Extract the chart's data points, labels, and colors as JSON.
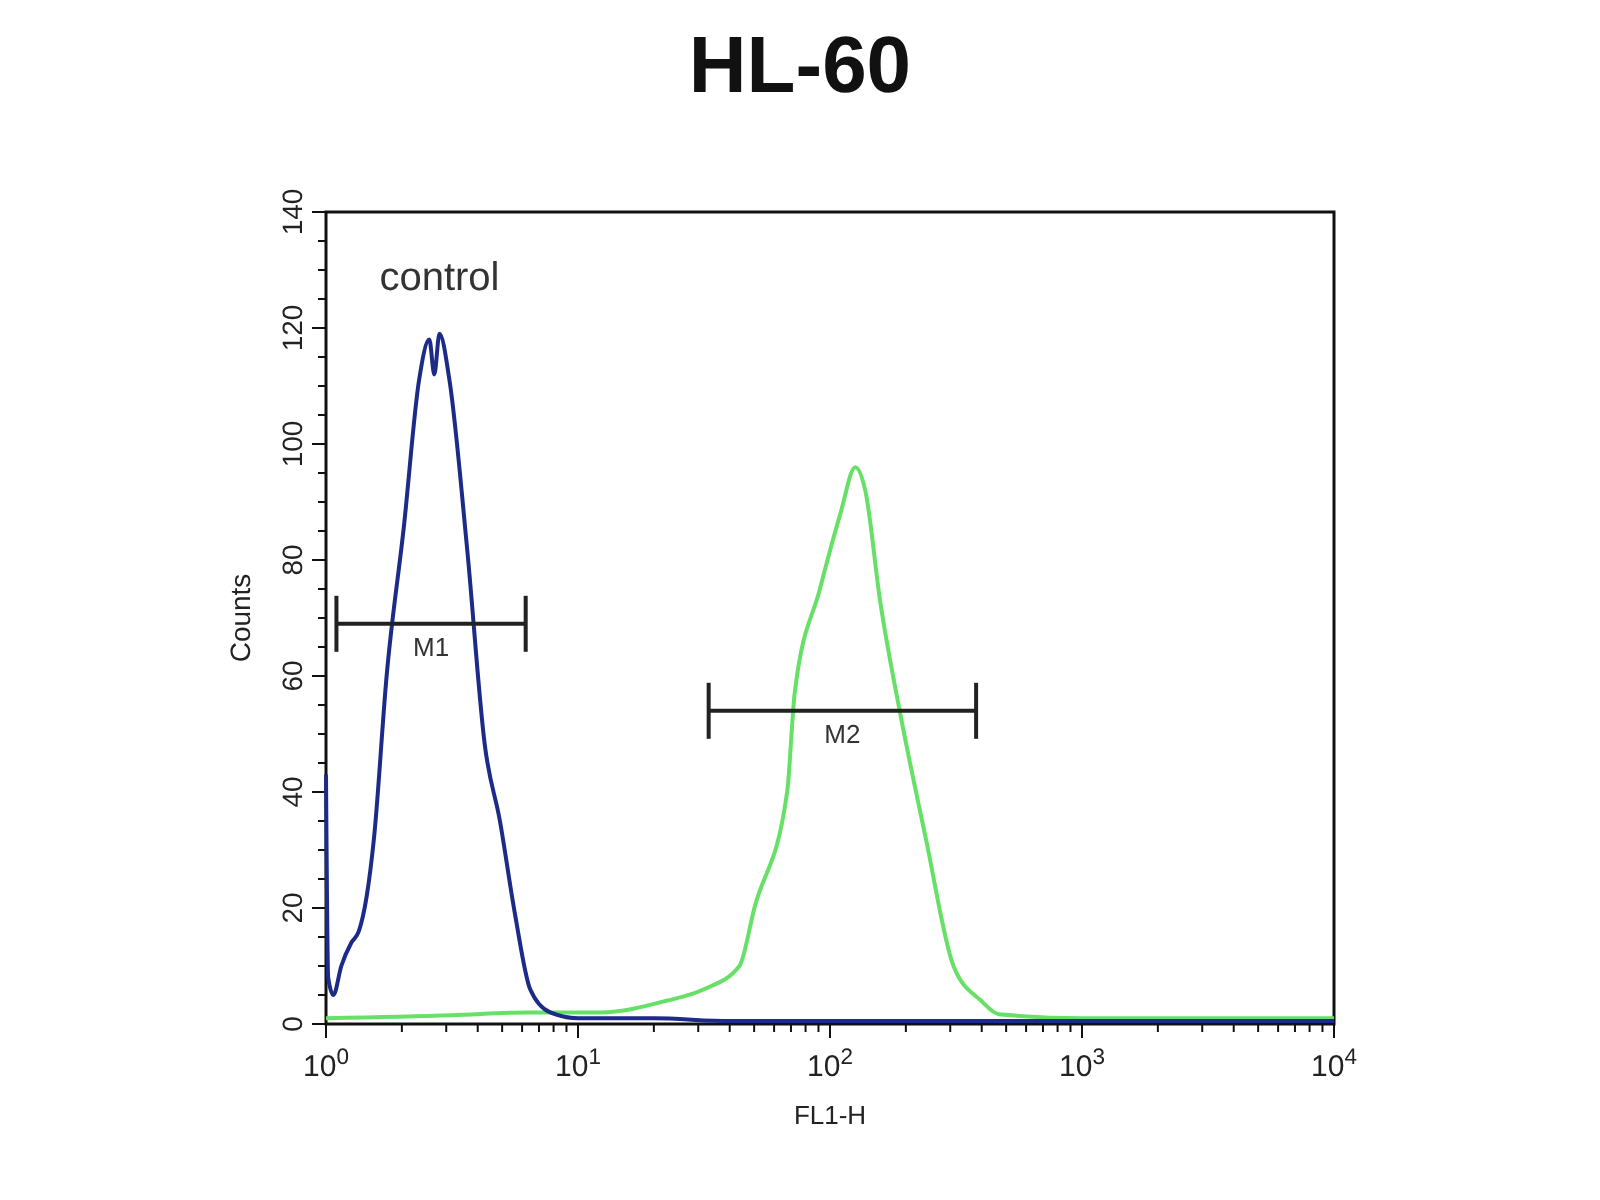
{
  "chart_data": {
    "type": "line",
    "title": "HL-60",
    "xlabel": "FL1-H",
    "ylabel": "Counts",
    "log": "x",
    "xlim": [
      1,
      10000
    ],
    "ylim": [
      0,
      140
    ],
    "xticks": [
      {
        "value": 1,
        "label": "10$^{0}$"
      },
      {
        "value": 2,
        "label": null
      },
      {
        "value": 3,
        "label": null
      },
      {
        "value": 4,
        "label": null
      },
      {
        "value": 5,
        "label": null
      },
      {
        "value": 6,
        "label": null
      },
      {
        "value": 7,
        "label": null
      },
      {
        "value": 8,
        "label": null
      },
      {
        "value": 9,
        "label": null
      },
      {
        "value": 10,
        "label": "10$^{1}$"
      },
      {
        "value": 20,
        "label": null
      },
      {
        "value": 30,
        "label": null
      },
      {
        "value": 40,
        "label": null
      },
      {
        "value": 50,
        "label": null
      },
      {
        "value": 60,
        "label": null
      },
      {
        "value": 70,
        "label": null
      },
      {
        "value": 80,
        "label": null
      },
      {
        "value": 90,
        "label": null
      },
      {
        "value": 100,
        "label": "10$^{2}$"
      },
      {
        "value": 200,
        "label": null
      },
      {
        "value": 300,
        "label": null
      },
      {
        "value": 400,
        "label": null
      },
      {
        "value": 500,
        "label": null
      },
      {
        "value": 600,
        "label": null
      },
      {
        "value": 700,
        "label": null
      },
      {
        "value": 800,
        "label": null
      },
      {
        "value": 900,
        "label": null
      },
      {
        "value": 1000,
        "label": "10$^{3}$"
      },
      {
        "value": 2000,
        "label": null
      },
      {
        "value": 3000,
        "label": null
      },
      {
        "value": 4000,
        "label": null
      },
      {
        "value": 5000,
        "label": null
      },
      {
        "value": 6000,
        "label": null
      },
      {
        "value": 7000,
        "label": null
      },
      {
        "value": 8000,
        "label": null
      },
      {
        "value": 9000,
        "label": null
      },
      {
        "value": 10000,
        "label": "10$^{4}$"
      }
    ],
    "yticks": [
      0,
      {
        "value": 5,
        "label": null
      },
      {
        "value": 10,
        "label": null
      },
      {
        "value": 15,
        "label": null
      },
      20,
      {
        "value": 25,
        "label": null
      },
      {
        "value": 30,
        "label": null
      },
      {
        "value": 35,
        "label": null
      },
      40,
      {
        "value": 45,
        "label": null
      },
      {
        "value": 50,
        "label": null
      },
      {
        "value": 55,
        "label": null
      },
      60,
      {
        "value": 65,
        "label": null
      },
      {
        "value": 70,
        "label": null
      },
      {
        "value": 75,
        "label": null
      },
      80,
      {
        "value": 85,
        "label": null
      },
      {
        "value": 90,
        "label": null
      },
      {
        "value": 95,
        "label": null
      },
      100,
      {
        "value": 105,
        "label": null
      },
      {
        "value": 110,
        "label": null
      },
      {
        "value": 115,
        "label": null
      },
      120,
      {
        "value": 125,
        "label": null
      },
      {
        "value": 130,
        "label": null
      },
      {
        "value": 135,
        "label": null
      },
      140
    ],
    "grid": false,
    "legend": false,
    "marker": "none",
    "series": [
      {
        "color": "#66e066",
        "x": [
          1,
          3.16,
          6.31,
          12.3,
          22.4,
          31.6,
          43.7,
          50.1,
          67.6,
          72.4,
          91.2,
          110,
          126,
          138,
          158,
          191,
          240,
          309,
          398,
          468,
          1000,
          3162,
          10000
        ],
        "values": [
          1,
          1.5,
          2,
          2,
          4,
          6,
          10,
          20,
          40,
          57,
          75,
          88,
          96,
          92,
          73,
          53,
          32,
          10,
          4,
          1.7,
          1,
          1,
          1
        ]
      },
      {
        "name": "control",
        "color": "#1c2a88",
        "x": [
          1,
          1.02,
          1.07,
          1.15,
          1.26,
          1.35,
          1.45,
          1.55,
          1.74,
          2.04,
          2.34,
          2.57,
          2.69,
          2.82,
          3.09,
          3.63,
          4.27,
          4.9,
          5.62,
          6.46,
          7.76,
          10,
          20,
          40,
          100,
          500,
          10000
        ],
        "values": [
          43,
          8,
          5,
          10,
          14,
          16,
          22,
          32,
          60,
          86,
          111,
          118,
          112,
          119,
          111,
          82,
          48,
          35,
          19,
          6,
          2,
          1,
          1,
          0.5,
          0.5,
          0.5,
          0.5
        ]
      },
      {
        "name": "M1",
        "color": "#222222",
        "x": [
          1.1,
          6.2
        ],
        "values": [
          69,
          69
        ]
      },
      {
        "name": "M2",
        "color": "#222222",
        "x": [
          33,
          380
        ],
        "values": [
          54,
          54
        ]
      }
    ]
  }
}
